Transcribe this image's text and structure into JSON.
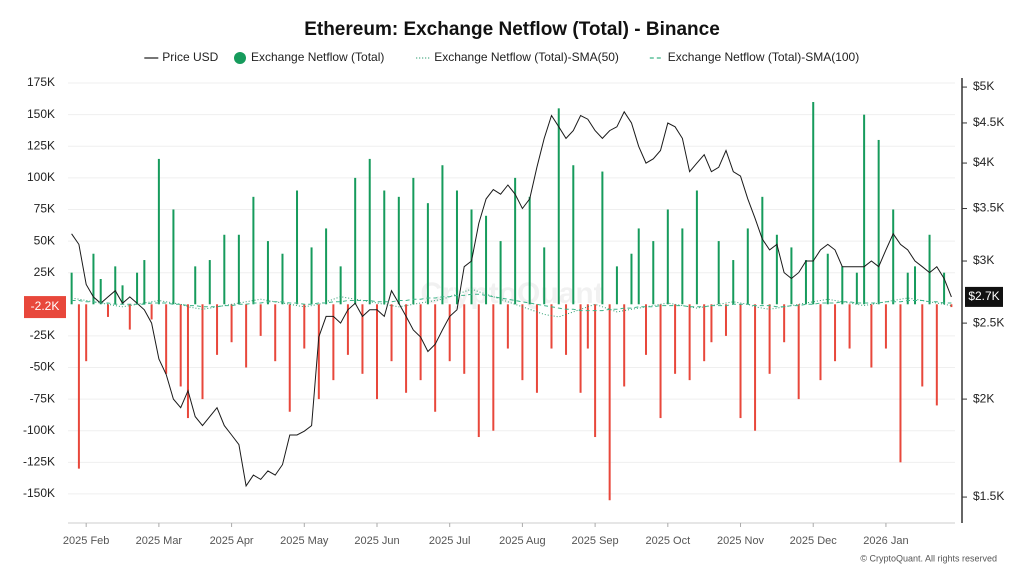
{
  "chart_data": {
    "type": "combo",
    "title": "Ethereum: Exchange Netflow (Total) - Binance",
    "footer": "© CryptoQuant. All rights reserved",
    "watermark": "CryptoQuant",
    "categories": [
      null,
      null,
      "2025 Feb",
      null,
      null,
      null,
      null,
      null,
      null,
      null,
      null,
      null,
      "2025 Mar",
      null,
      null,
      null,
      null,
      null,
      null,
      null,
      null,
      null,
      "2025 Apr",
      null,
      null,
      null,
      null,
      null,
      null,
      null,
      null,
      null,
      "2025 May",
      null,
      null,
      null,
      null,
      null,
      null,
      null,
      null,
      null,
      "2025 Jun",
      null,
      null,
      null,
      null,
      null,
      null,
      null,
      null,
      null,
      "2025 Jul",
      null,
      null,
      null,
      null,
      null,
      null,
      null,
      null,
      null,
      "2025 Aug",
      null,
      null,
      null,
      null,
      null,
      null,
      null,
      null,
      null,
      "2025 Sep",
      null,
      null,
      null,
      null,
      null,
      null,
      null,
      null,
      null,
      "2025 Oct",
      null,
      null,
      null,
      null,
      null,
      null,
      null,
      null,
      null,
      "2025 Nov",
      null,
      null,
      null,
      null,
      null,
      null,
      null,
      null,
      null,
      "2025 Dec",
      null,
      null,
      null,
      null,
      null,
      null,
      null,
      null,
      null,
      "2026 Jan",
      null,
      null,
      null,
      null,
      null,
      null,
      null,
      null,
      null
    ],
    "ylim": [
      -173000,
      179000
    ],
    "yticks": [
      {
        "value": -150000,
        "label": "-150K"
      },
      {
        "value": -125000,
        "label": "-125K"
      },
      {
        "value": -100000,
        "label": "-100K"
      },
      {
        "value": -75000,
        "label": "-75K"
      },
      {
        "value": -50000,
        "label": "-50K"
      },
      {
        "value": -25000,
        "label": "-25K"
      },
      {
        "value": 25000,
        "label": "25K"
      },
      {
        "value": 50000,
        "label": "50K"
      },
      {
        "value": 75000,
        "label": "75K"
      },
      {
        "value": 100000,
        "label": "100K"
      },
      {
        "value": 125000,
        "label": "125K"
      },
      {
        "value": 150000,
        "label": "150K"
      },
      {
        "value": 175000,
        "label": "175K"
      }
    ],
    "y2lim": [
      1390,
      5135
    ],
    "y2_log": true,
    "y2ticks": [
      {
        "value": 1500,
        "label": "$1.5K"
      },
      {
        "value": 2000,
        "label": "$2K"
      },
      {
        "value": 2500,
        "label": "$2.5K"
      },
      {
        "value": 3000,
        "label": "$3K"
      },
      {
        "value": 3500,
        "label": "$3.5K"
      },
      {
        "value": 4000,
        "label": "$4K"
      },
      {
        "value": 4500,
        "label": "$4.5K"
      },
      {
        "value": 5000,
        "label": "$5K"
      }
    ],
    "grid": true,
    "series": [
      {
        "name": "Price USD",
        "kind": "line",
        "axis": "y2",
        "color": "#1a1a1a",
        "last_value_label": "$2.7K",
        "values": [
          3250,
          3150,
          2800,
          2700,
          2650,
          2700,
          2750,
          2650,
          2700,
          2650,
          2600,
          2500,
          2250,
          2150,
          2000,
          1950,
          2050,
          1900,
          1850,
          1900,
          1950,
          1850,
          1800,
          1750,
          1550,
          1600,
          1580,
          1620,
          1600,
          1650,
          1800,
          1800,
          1820,
          1850,
          2400,
          2550,
          2550,
          2500,
          2600,
          2650,
          2550,
          2600,
          2600,
          2550,
          2750,
          2650,
          2550,
          2450,
          2400,
          2300,
          2350,
          2450,
          2550,
          2600,
          2950,
          3000,
          3350,
          3600,
          3700,
          3650,
          3750,
          3650,
          3500,
          3600,
          3950,
          4300,
          4600,
          4450,
          4300,
          4400,
          4600,
          4550,
          4400,
          4300,
          4400,
          4450,
          4650,
          4500,
          4200,
          4000,
          4050,
          4150,
          4500,
          4450,
          4300,
          3900,
          4000,
          4100,
          3900,
          3950,
          4150,
          3900,
          3850,
          3600,
          3400,
          3200,
          3100,
          3150,
          2900,
          2850,
          2900,
          3000,
          3000,
          3100,
          3150,
          3100,
          2950,
          2950,
          2950,
          2950,
          3000,
          2950,
          3100,
          3250,
          3150,
          3100,
          3000,
          2950,
          2900,
          2950,
          2850,
          2700
        ]
      },
      {
        "name": "Exchange Netflow (Total)",
        "kind": "bar",
        "color": "#169b5c",
        "negative_color": "#e8473b",
        "last_value_label": "-2.2K",
        "values": [
          25000,
          -130000,
          -45000,
          40000,
          20000,
          -10000,
          30000,
          15000,
          -20000,
          25000,
          35000,
          -12000,
          115000,
          -55000,
          75000,
          -65000,
          -90000,
          30000,
          -75000,
          35000,
          -40000,
          55000,
          -30000,
          55000,
          -50000,
          85000,
          -25000,
          50000,
          -45000,
          40000,
          -85000,
          90000,
          -35000,
          45000,
          -75000,
          60000,
          -60000,
          30000,
          -40000,
          100000,
          -55000,
          115000,
          -75000,
          90000,
          -45000,
          85000,
          -70000,
          100000,
          -60000,
          80000,
          -85000,
          110000,
          -45000,
          90000,
          -55000,
          75000,
          -105000,
          70000,
          -100000,
          50000,
          -35000,
          100000,
          -60000,
          85000,
          -70000,
          45000,
          -35000,
          155000,
          -40000,
          110000,
          -70000,
          -35000,
          -105000,
          105000,
          -155000,
          30000,
          -65000,
          40000,
          60000,
          -40000,
          50000,
          -90000,
          75000,
          -55000,
          60000,
          -60000,
          90000,
          -45000,
          -30000,
          50000,
          -25000,
          35000,
          -90000,
          60000,
          -100000,
          85000,
          -55000,
          55000,
          -30000,
          45000,
          -75000,
          35000,
          160000,
          -60000,
          40000,
          -45000,
          30000,
          -35000,
          25000,
          150000,
          -50000,
          130000,
          -35000,
          75000,
          -125000,
          25000,
          30000,
          -65000,
          55000,
          -80000,
          25000,
          -2200
        ]
      },
      {
        "name": "Exchange Netflow (Total)-SMA(50)",
        "kind": "line",
        "dash": "1,2",
        "color": "#2f9e72",
        "values": [
          5000,
          4000,
          3000,
          2000,
          1000,
          0,
          -1000,
          -2000,
          -1000,
          0,
          1000,
          2000,
          3000,
          2000,
          1000,
          0,
          -2000,
          -3000,
          -4000,
          -3000,
          -2000,
          -1000,
          0,
          1000,
          2000,
          3000,
          4000,
          3000,
          2000,
          1000,
          0,
          -1000,
          -2000,
          -1000,
          0,
          2000,
          4000,
          6000,
          5000,
          4000,
          3000,
          2000,
          1000,
          0,
          -1000,
          -2000,
          -1000,
          0,
          1000,
          2000,
          3000,
          4000,
          6000,
          8000,
          10000,
          12000,
          10000,
          8000,
          6000,
          4000,
          2000,
          0,
          -2000,
          -4000,
          -6000,
          -8000,
          -9000,
          -10000,
          -8000,
          -6000,
          -4000,
          -2000,
          0,
          -2000,
          -4000,
          -6000,
          -5000,
          -4000,
          -3000,
          -2000,
          -1000,
          0,
          1000,
          0,
          -1000,
          -2000,
          -3000,
          -2000,
          -1000,
          0,
          1000,
          2000,
          1000,
          0,
          -2000,
          -3000,
          -4000,
          -3000,
          -2000,
          -1000,
          0,
          1000,
          2000,
          3000,
          4000,
          3000,
          2000,
          1000,
          0,
          -1000,
          0,
          1000,
          2000,
          3000,
          4000,
          5000,
          4000,
          3000,
          2000,
          1000,
          0,
          -1000
        ]
      },
      {
        "name": "Exchange Netflow (Total)-SMA(100)",
        "kind": "line",
        "dash": "4,3",
        "color": "#3db488",
        "values": [
          3000,
          3000,
          2000,
          2000,
          1000,
          1000,
          0,
          0,
          0,
          0,
          0,
          1000,
          1000,
          1000,
          0,
          0,
          -1000,
          -1000,
          -2000,
          -2000,
          -2000,
          -1000,
          -1000,
          0,
          0,
          1000,
          1000,
          2000,
          2000,
          2000,
          1000,
          1000,
          0,
          0,
          1000,
          1000,
          2000,
          2000,
          3000,
          3000,
          3000,
          3000,
          2000,
          2000,
          2000,
          3000,
          3000,
          4000,
          4000,
          5000,
          5000,
          6000,
          6000,
          7000,
          7000,
          8000,
          8000,
          7000,
          6000,
          5000,
          4000,
          3000,
          2000,
          1000,
          0,
          -1000,
          -2000,
          -3000,
          -4000,
          -4000,
          -5000,
          -5000,
          -5000,
          -5000,
          -4000,
          -4000,
          -3000,
          -3000,
          -2000,
          -2000,
          -2000,
          -1000,
          -1000,
          -1000,
          -1000,
          -2000,
          -2000,
          -2000,
          -1000,
          -1000,
          -1000,
          0,
          0,
          0,
          -1000,
          -1000,
          -1000,
          -2000,
          -2000,
          -1000,
          -1000,
          0,
          0,
          1000,
          1000,
          1000,
          2000,
          2000,
          1000,
          1000,
          1000,
          1000,
          2000,
          2000,
          2000,
          3000,
          3000,
          3000,
          2000,
          2000,
          1000,
          1000
        ]
      }
    ]
  }
}
